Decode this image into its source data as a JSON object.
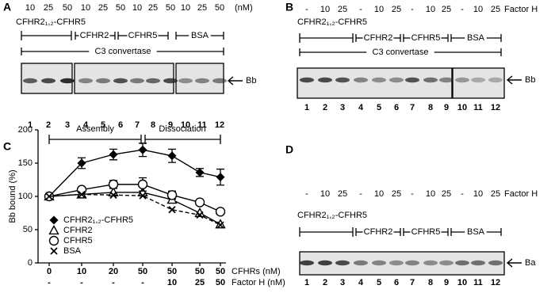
{
  "panels": {
    "a": {
      "letter": "A",
      "top_labels": [
        "10",
        "25",
        "50",
        "10",
        "25",
        "50",
        "10",
        "25",
        "50",
        "10",
        "25",
        "50"
      ],
      "top_unit": "(nM)",
      "title": "CFHR2₁,₂-CFHR5",
      "groups": [
        "CFHR2",
        "CFHR5",
        "BSA"
      ],
      "convertase": "C3 convertase",
      "band": "Bb",
      "lanes": [
        "1",
        "2",
        "3",
        "4",
        "5",
        "6",
        "7",
        "8",
        "9",
        "10",
        "11",
        "12"
      ]
    },
    "b": {
      "letter": "B",
      "top_labels": [
        "-",
        "10",
        "25",
        "-",
        "10",
        "25",
        "-",
        "10",
        "25",
        "-",
        "10",
        "25"
      ],
      "top_unit": "Factor H",
      "title": "CFHR2₁,₂-CFHR5",
      "groups": [
        "CFHR2",
        "CFHR5",
        "BSA"
      ],
      "convertase": "C3 convertase",
      "band": "Bb",
      "lanes": [
        "1",
        "2",
        "3",
        "4",
        "5",
        "6",
        "7",
        "8",
        "9",
        "10",
        "11",
        "12"
      ]
    },
    "d": {
      "letter": "D",
      "top_labels": [
        "-",
        "10",
        "25",
        "-",
        "10",
        "25",
        "-",
        "10",
        "25",
        "-",
        "10",
        "25"
      ],
      "top_unit": "Factor H",
      "title": "CFHR2₁,₂-CFHR5",
      "groups": [
        "CFHR2",
        "CFHR5",
        "BSA"
      ],
      "band": "Ba",
      "lanes": [
        "1",
        "2",
        "3",
        "4",
        "5",
        "6",
        "7",
        "8",
        "9",
        "10",
        "11",
        "12"
      ]
    }
  },
  "chart_data": {
    "type": "line",
    "letter": "C",
    "y_label": "Bb bound (%)",
    "annotations": [
      "Assembly",
      "Dissociation"
    ],
    "categories": [
      "0",
      "10",
      "20",
      "50",
      "50",
      "50",
      "50"
    ],
    "categories_label": "CFHRs (nM)",
    "categories_factor_h": [
      "-",
      "-",
      "-",
      "-",
      "10",
      "25",
      "50"
    ],
    "categories_factor_h_label": "Factor H (nM)",
    "ylim": [
      0,
      200
    ],
    "yticks": [
      0,
      50,
      100,
      150,
      200
    ],
    "series": [
      {
        "name": "CFHR2₁,₂-CFHR5",
        "color": "#000000",
        "marker": "diamond",
        "dashed": false,
        "values": [
          100,
          150,
          163,
          170,
          161,
          136,
          129
        ],
        "errors": [
          2,
          8,
          8,
          10,
          10,
          6,
          12
        ]
      },
      {
        "name": "CFHR2",
        "color": "#000000",
        "marker": "triangle",
        "dashed": false,
        "values": [
          100,
          103,
          106,
          106,
          95,
          75,
          58
        ]
      },
      {
        "name": "CFHR5",
        "color": "#000000",
        "marker": "circle",
        "dashed": false,
        "values": [
          100,
          110,
          118,
          118,
          102,
          91,
          77
        ],
        "errors": [
          2,
          4,
          6,
          10,
          6,
          3,
          3
        ]
      },
      {
        "name": "BSA",
        "color": "#000000",
        "marker": "x",
        "dashed": true,
        "values": [
          100,
          103,
          102,
          101,
          80,
          72,
          57
        ]
      }
    ]
  }
}
